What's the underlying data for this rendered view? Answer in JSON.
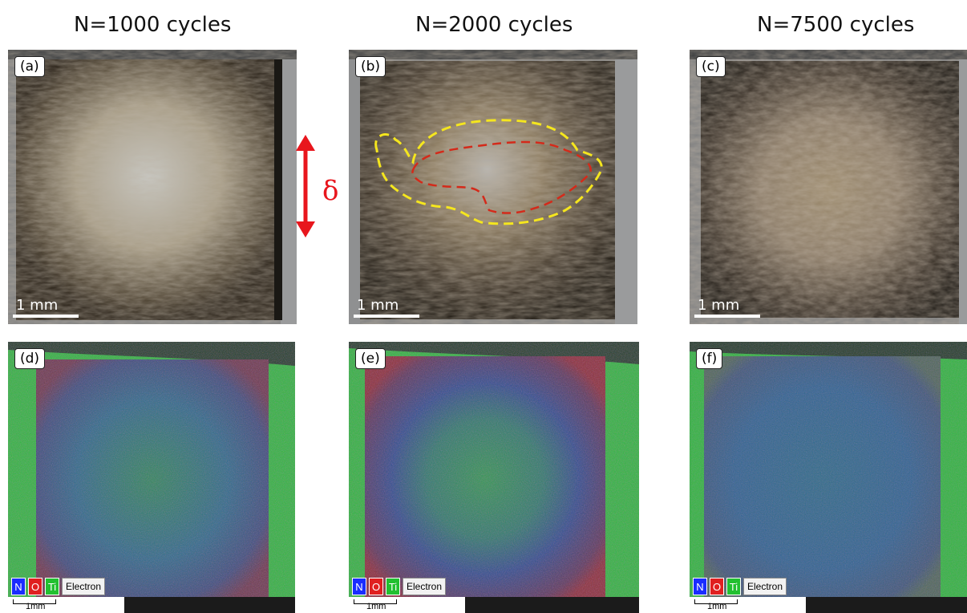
{
  "columns": [
    "N=1000 cycles",
    "N=2000 cycles",
    "N=7500 cycles"
  ],
  "optical_panels": [
    {
      "label": "(a)",
      "scale": "1 mm"
    },
    {
      "label": "(b)",
      "scale": "1 mm"
    },
    {
      "label": "(c)",
      "scale": "1 mm"
    }
  ],
  "eds_panels": [
    {
      "label": "(d)",
      "scale": "1mm"
    },
    {
      "label": "(e)",
      "scale": "1mm"
    },
    {
      "label": "(f)",
      "scale": "1mm"
    }
  ],
  "legend": {
    "n": "N",
    "o": "O",
    "ti": "Ti",
    "electron": "Electron"
  },
  "delta_symbol": "δ",
  "colors": {
    "nitrogen": "#1a2cff",
    "oxygen": "#e02020",
    "titanium": "#22c030",
    "arrow": "#e8161d",
    "outline_yellow": "#f5e61e",
    "outline_red": "#d42a1a"
  }
}
